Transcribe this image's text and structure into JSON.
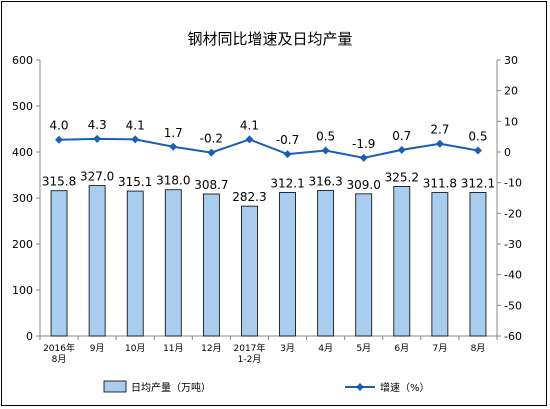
{
  "chart_data": {
    "type": "bar",
    "title": "钢材同比增速及日均产量",
    "categories": [
      [
        "2016年",
        "8月"
      ],
      [
        "9月"
      ],
      [
        "10月"
      ],
      [
        "11月"
      ],
      [
        "12月"
      ],
      [
        "2017年",
        "1-2月"
      ],
      [
        "3月"
      ],
      [
        "4月"
      ],
      [
        "5月"
      ],
      [
        "6月"
      ],
      [
        "7月"
      ],
      [
        "8月"
      ]
    ],
    "series": [
      {
        "name": "日均产量（万吨）",
        "type": "bar",
        "axis": "left",
        "color": "#a9cdef",
        "values": [
          315.8,
          327.0,
          315.1,
          318.0,
          308.7,
          282.3,
          312.1,
          316.3,
          309.0,
          325.2,
          311.8,
          312.1
        ],
        "labels": [
          "315.8",
          "327.0",
          "315.1",
          "318.0",
          "308.7",
          "282.3",
          "312.1",
          "316.3",
          "309.0",
          "325.2",
          "311.8",
          "312.1"
        ]
      },
      {
        "name": "增速（%）",
        "type": "line",
        "axis": "right",
        "color": "#1b5fb4",
        "values": [
          4.0,
          4.3,
          4.1,
          1.7,
          -0.2,
          4.1,
          -0.7,
          0.5,
          -1.9,
          0.7,
          2.7,
          0.5
        ],
        "labels": [
          "4.0",
          "4.3",
          "4.1",
          "1.7",
          "-0.2",
          "4.1",
          "-0.7",
          "0.5",
          "-1.9",
          "0.7",
          "2.7",
          "0.5"
        ]
      }
    ],
    "y_left": {
      "min": 0,
      "max": 600,
      "ticks": [
        0,
        100,
        200,
        300,
        400,
        500,
        600
      ]
    },
    "y_right": {
      "min": -60,
      "max": 30,
      "ticks": [
        -60,
        -50,
        -40,
        -30,
        -20,
        -10,
        0,
        10,
        20,
        30
      ]
    },
    "grid": false,
    "legend_position": "bottom"
  }
}
